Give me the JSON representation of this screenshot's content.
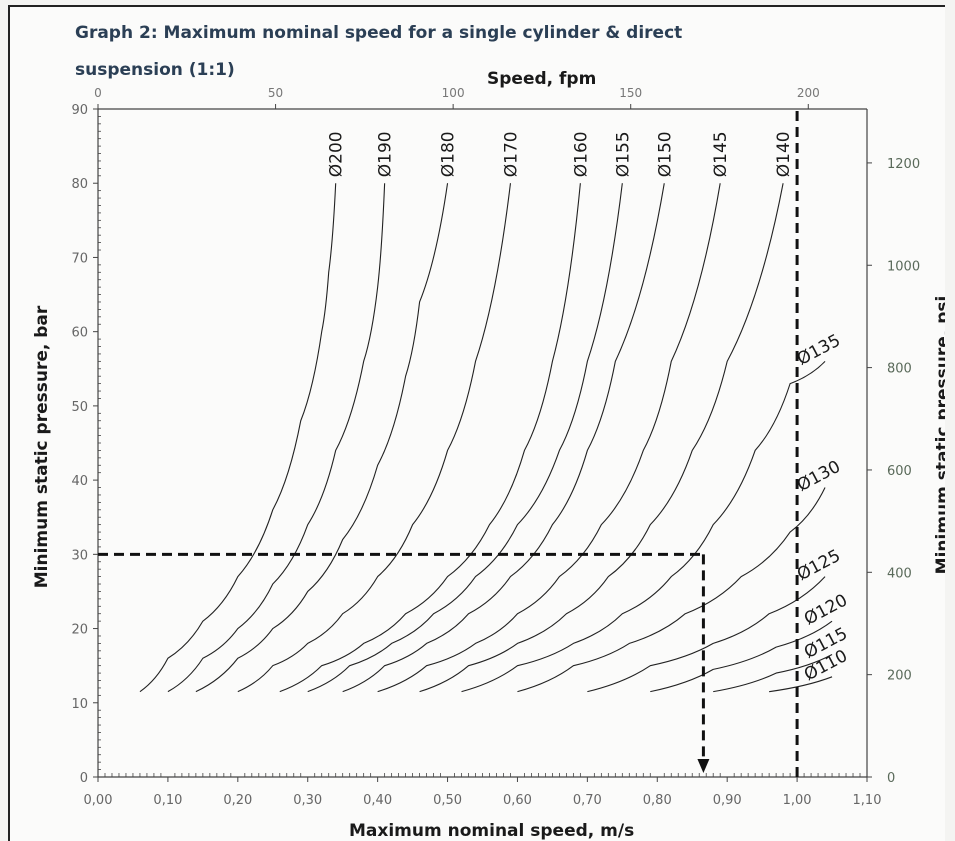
{
  "chart_data": {
    "type": "line",
    "title_line1": "Graph 2: Maximum nominal speed for a single cylinder & direct",
    "title_line2": "suspension (1:1)",
    "xlabel": "Maximum nominal speed, m/s",
    "ylabel": "Minimum static pressure, bar",
    "x2label": "Speed, fpm",
    "y2label": "Minimum static pressure, psi",
    "xlim": [
      0,
      1.1
    ],
    "ylim": [
      0,
      90
    ],
    "x_ticks": [
      "0,00",
      "0,10",
      "0,20",
      "0,30",
      "0,40",
      "0,50",
      "0,60",
      "0,70",
      "0,80",
      "0,90",
      "1,00",
      "1,10"
    ],
    "y_ticks": [
      "0",
      "10",
      "20",
      "30",
      "40",
      "50",
      "60",
      "70",
      "80",
      "90"
    ],
    "x2_ticks": [
      {
        "v": 0,
        "label": "0"
      },
      {
        "v": 50,
        "label": "50"
      },
      {
        "v": 100,
        "label": "100"
      },
      {
        "v": 150,
        "label": "150"
      },
      {
        "v": 200,
        "label": "200"
      }
    ],
    "y2_ticks": [
      {
        "v": 0,
        "label": "0"
      },
      {
        "v": 200,
        "label": "200"
      },
      {
        "v": 400,
        "label": "400"
      },
      {
        "v": 600,
        "label": "600"
      },
      {
        "v": 800,
        "label": "800"
      },
      {
        "v": 1000,
        "label": "1000"
      },
      {
        "v": 1200,
        "label": "1200"
      }
    ],
    "grid": false,
    "series": [
      {
        "name": "Ø200",
        "x": [
          0.06,
          0.1,
          0.15,
          0.2,
          0.25,
          0.29,
          0.32,
          0.33,
          0.34
        ],
        "y": [
          11.5,
          16,
          21,
          27,
          36,
          48,
          60,
          68,
          80
        ],
        "label_pos": "top"
      },
      {
        "name": "Ø190",
        "x": [
          0.1,
          0.15,
          0.2,
          0.25,
          0.3,
          0.34,
          0.38,
          0.4,
          0.41
        ],
        "y": [
          11.5,
          16,
          20,
          26,
          34,
          44,
          56,
          66,
          80
        ],
        "label_pos": "top"
      },
      {
        "name": "Ø180",
        "x": [
          0.14,
          0.2,
          0.25,
          0.3,
          0.35,
          0.4,
          0.44,
          0.46,
          0.5
        ],
        "y": [
          11.5,
          16,
          20,
          25,
          32,
          42,
          54,
          64,
          80
        ],
        "label_pos": "top"
      },
      {
        "name": "Ø170",
        "x": [
          0.2,
          0.25,
          0.3,
          0.35,
          0.4,
          0.45,
          0.5,
          0.54,
          0.59
        ],
        "y": [
          11.5,
          15,
          18,
          22,
          27,
          34,
          44,
          56,
          80
        ],
        "label_pos": "top"
      },
      {
        "name": "Ø160",
        "x": [
          0.26,
          0.32,
          0.38,
          0.44,
          0.5,
          0.56,
          0.61,
          0.65,
          0.69
        ],
        "y": [
          11.5,
          15,
          18,
          22,
          27,
          34,
          44,
          56,
          80
        ],
        "label_pos": "top"
      },
      {
        "name": "Ø155",
        "x": [
          0.3,
          0.36,
          0.42,
          0.48,
          0.54,
          0.6,
          0.66,
          0.7,
          0.75
        ],
        "y": [
          11.5,
          15,
          18,
          22,
          27,
          34,
          44,
          56,
          80
        ],
        "label_pos": "top"
      },
      {
        "name": "Ø150",
        "x": [
          0.35,
          0.41,
          0.47,
          0.53,
          0.59,
          0.65,
          0.7,
          0.74,
          0.81
        ],
        "y": [
          11.5,
          15,
          18,
          22,
          27,
          34,
          44,
          56,
          80
        ],
        "label_pos": "top"
      },
      {
        "name": "Ø145",
        "x": [
          0.4,
          0.47,
          0.54,
          0.6,
          0.66,
          0.72,
          0.78,
          0.82,
          0.89
        ],
        "y": [
          11.5,
          15,
          18,
          22,
          27,
          34,
          44,
          56,
          80
        ],
        "label_pos": "top"
      },
      {
        "name": "Ø140",
        "x": [
          0.46,
          0.53,
          0.6,
          0.67,
          0.73,
          0.79,
          0.85,
          0.9,
          0.98
        ],
        "y": [
          11.5,
          15,
          18,
          22,
          27,
          34,
          44,
          56,
          80
        ],
        "label_pos": "top"
      },
      {
        "name": "Ø135",
        "x": [
          0.52,
          0.6,
          0.68,
          0.75,
          0.82,
          0.88,
          0.94,
          0.99,
          1.04
        ],
        "y": [
          11.5,
          15,
          18,
          22,
          27,
          34,
          44,
          53,
          56
        ],
        "label_pos": "end"
      },
      {
        "name": "Ø130",
        "x": [
          0.6,
          0.68,
          0.76,
          0.84,
          0.92,
          0.99,
          1.04
        ],
        "y": [
          11.5,
          15,
          18,
          22,
          27,
          33,
          39
        ],
        "label_pos": "end"
      },
      {
        "name": "Ø125",
        "x": [
          0.7,
          0.79,
          0.88,
          0.96,
          1.04
        ],
        "y": [
          11.5,
          15,
          18,
          22,
          27
        ],
        "label_pos": "end"
      },
      {
        "name": "Ø120",
        "x": [
          0.79,
          0.88,
          0.97,
          1.05
        ],
        "y": [
          11.5,
          14.5,
          17.5,
          21
        ],
        "label_pos": "end"
      },
      {
        "name": "Ø115",
        "x": [
          0.88,
          0.97,
          1.05
        ],
        "y": [
          11.5,
          14,
          16.5
        ],
        "label_pos": "end"
      },
      {
        "name": "Ø110",
        "x": [
          0.96,
          1.05
        ],
        "y": [
          11.5,
          13.5
        ],
        "label_pos": "end"
      }
    ]
  }
}
